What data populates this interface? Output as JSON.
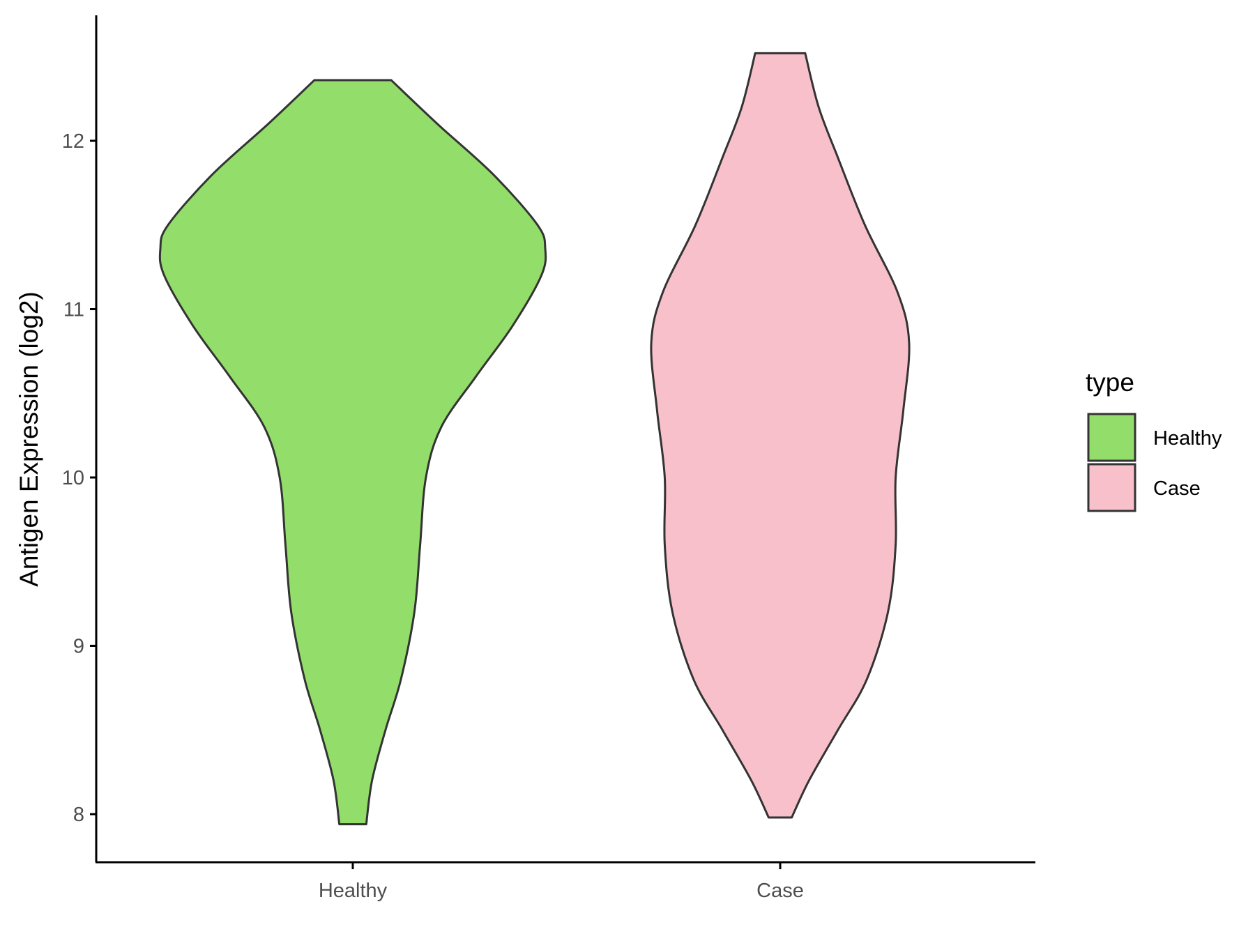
{
  "chart_data": {
    "type": "violin",
    "title": "",
    "xlabel": "",
    "ylabel": "Antigen Expression (log2)",
    "ylim": [
      7.7,
      12.75
    ],
    "yticks": [
      8,
      9,
      10,
      11,
      12
    ],
    "categories": [
      "Healthy",
      "Case"
    ],
    "grid": false,
    "legend": {
      "title": "type",
      "position": "right",
      "entries": [
        {
          "label": "Healthy",
          "color": "#93dd6a"
        },
        {
          "label": "Case",
          "color": "#f8c0cb"
        }
      ]
    },
    "series": [
      {
        "category": "Healthy",
        "color": "#93dd6a",
        "min": 7.94,
        "max": 12.36,
        "density": [
          [
            7.94,
            0.07
          ],
          [
            8.2,
            0.1
          ],
          [
            8.5,
            0.17
          ],
          [
            8.8,
            0.25
          ],
          [
            9.2,
            0.32
          ],
          [
            9.6,
            0.35
          ],
          [
            10.0,
            0.38
          ],
          [
            10.3,
            0.46
          ],
          [
            10.6,
            0.64
          ],
          [
            10.9,
            0.83
          ],
          [
            11.2,
            0.98
          ],
          [
            11.36,
            1.0
          ],
          [
            11.5,
            0.96
          ],
          [
            11.8,
            0.73
          ],
          [
            12.1,
            0.44
          ],
          [
            12.36,
            0.2
          ]
        ]
      },
      {
        "category": "Case",
        "color": "#f8c0cb",
        "min": 7.98,
        "max": 12.52,
        "density": [
          [
            7.98,
            0.06
          ],
          [
            8.2,
            0.15
          ],
          [
            8.5,
            0.3
          ],
          [
            8.8,
            0.45
          ],
          [
            9.2,
            0.56
          ],
          [
            9.6,
            0.6
          ],
          [
            10.0,
            0.6
          ],
          [
            10.4,
            0.64
          ],
          [
            10.8,
            0.67
          ],
          [
            11.1,
            0.61
          ],
          [
            11.5,
            0.44
          ],
          [
            11.9,
            0.3
          ],
          [
            12.2,
            0.2
          ],
          [
            12.52,
            0.13
          ]
        ]
      }
    ]
  }
}
